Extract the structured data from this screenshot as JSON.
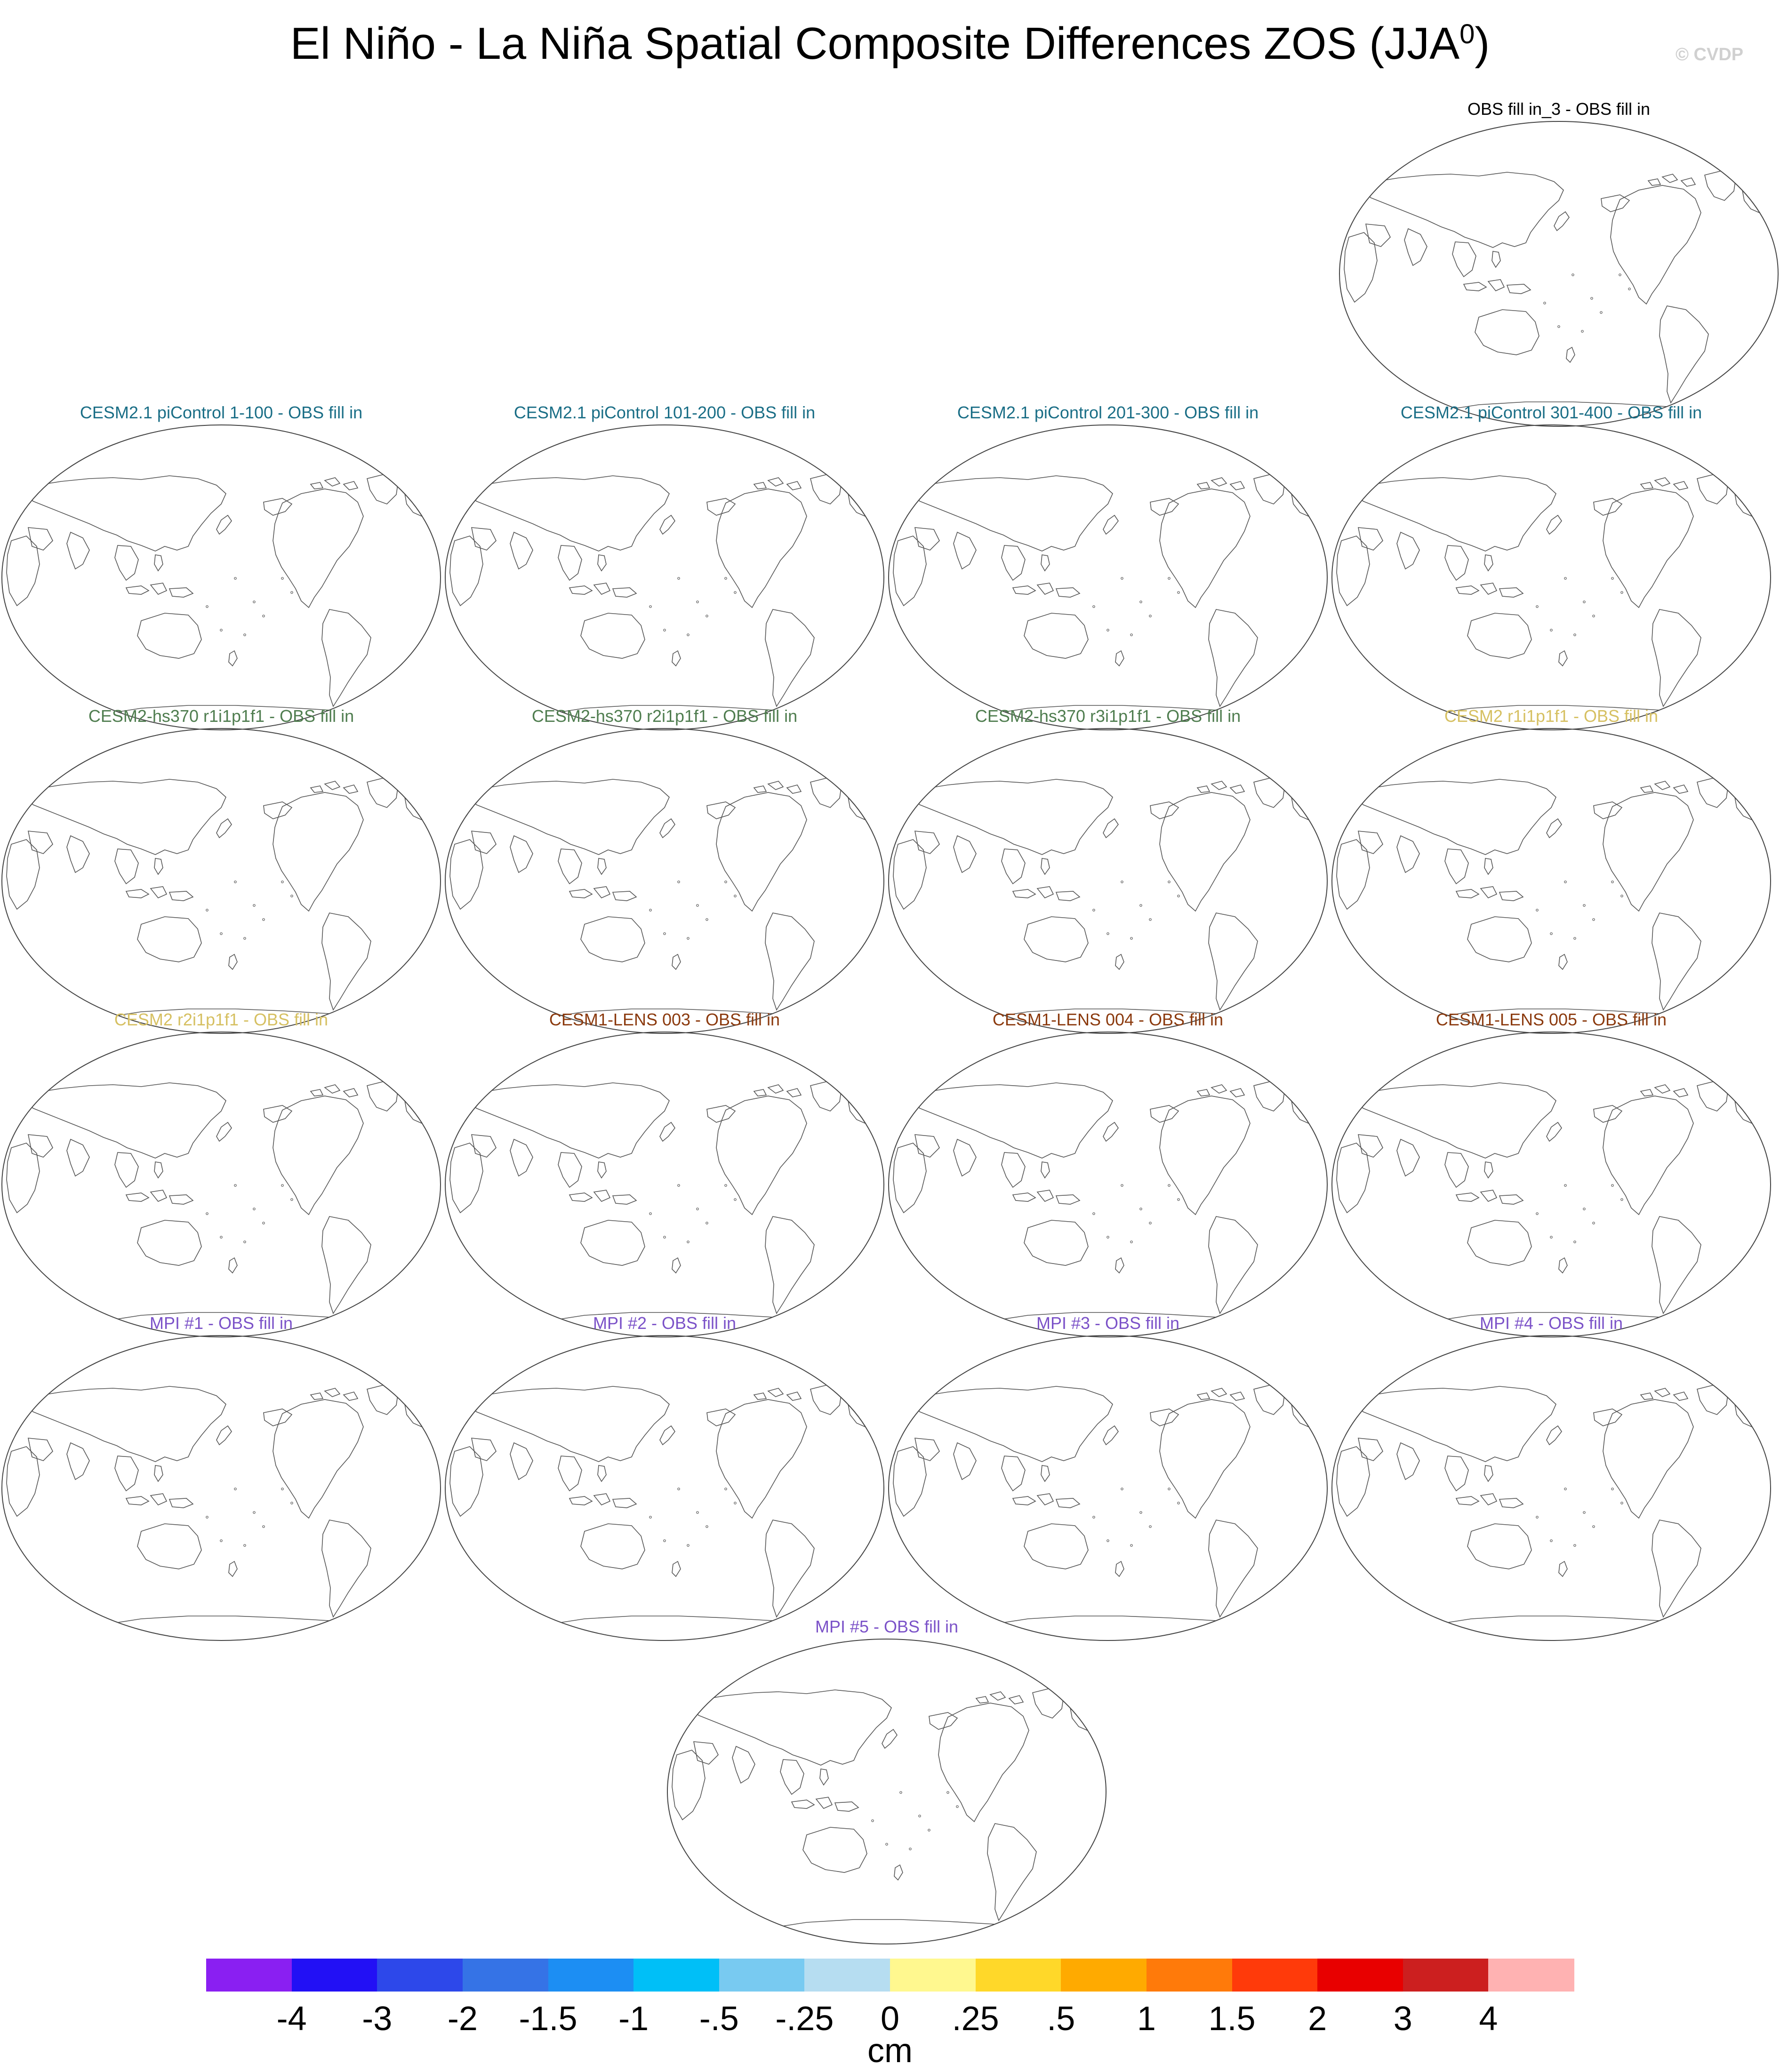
{
  "title_main": "El Niño - La Niña Spatial Composite Differences ZOS (JJA",
  "title_sup": "0",
  "title_close": ")",
  "watermark": "© CVDP",
  "chart_data": {
    "type": "heatmap",
    "title": "El Niño - La Niña Spatial Composite Differences ZOS (JJA0)",
    "panels": [
      {
        "title": "OBS fill in_3 - OBS fill in",
        "color": "#000000"
      },
      {
        "title": "CESM2.1 piControl 1-100 - OBS fill in",
        "color": "#1a6e86"
      },
      {
        "title": "CESM2.1 piControl 101-200 - OBS fill in",
        "color": "#1a6e86"
      },
      {
        "title": "CESM2.1 piControl 201-300 - OBS fill in",
        "color": "#1a6e86"
      },
      {
        "title": "CESM2.1 piControl 301-400 - OBS fill in",
        "color": "#1a6e86"
      },
      {
        "title": "CESM2-hs370 r1i1p1f1 - OBS fill in",
        "color": "#4f7d4f"
      },
      {
        "title": "CESM2-hs370 r2i1p1f1 - OBS fill in",
        "color": "#4f7d4f"
      },
      {
        "title": "CESM2-hs370 r3i1p1f1 - OBS fill in",
        "color": "#4f7d4f"
      },
      {
        "title": "CESM2 r1i1p1f1 - OBS fill in",
        "color": "#d6c062"
      },
      {
        "title": "CESM2 r2i1p1f1 - OBS fill in",
        "color": "#d6c062"
      },
      {
        "title": "CESM1-LENS 003 - OBS fill in",
        "color": "#8b3a0e"
      },
      {
        "title": "CESM1-LENS 004 - OBS fill in",
        "color": "#8b3a0e"
      },
      {
        "title": "CESM1-LENS 005 - OBS fill in",
        "color": "#8b3a0e"
      },
      {
        "title": "MPI #1 - OBS fill in",
        "color": "#7b52c8"
      },
      {
        "title": "MPI #2 - OBS fill in",
        "color": "#7b52c8"
      },
      {
        "title": "MPI #3 - OBS fill in",
        "color": "#7b52c8"
      },
      {
        "title": "MPI #4 - OBS fill in",
        "color": "#7b52c8"
      },
      {
        "title": "MPI #5 - OBS fill in",
        "color": "#7b52c8"
      }
    ],
    "colorbar": {
      "levels": [
        "-4",
        "-3",
        "-2",
        "-1.5",
        "-1",
        "-.5",
        "-.25",
        "0",
        ".25",
        ".5",
        "1",
        "1.5",
        "2",
        "3",
        "4"
      ],
      "colors": [
        "#8a1ff2",
        "#2210f5",
        "#2d48ea",
        "#3573e6",
        "#1c8ef3",
        "#00bff7",
        "#78caf1",
        "#b6ddf1",
        "#fff88f",
        "#ffd829",
        "#ffaa00",
        "#ff7a0a",
        "#ff3a0a",
        "#e80000",
        "#cc1f1f",
        "#ffb2b2"
      ],
      "units": "cm"
    }
  }
}
